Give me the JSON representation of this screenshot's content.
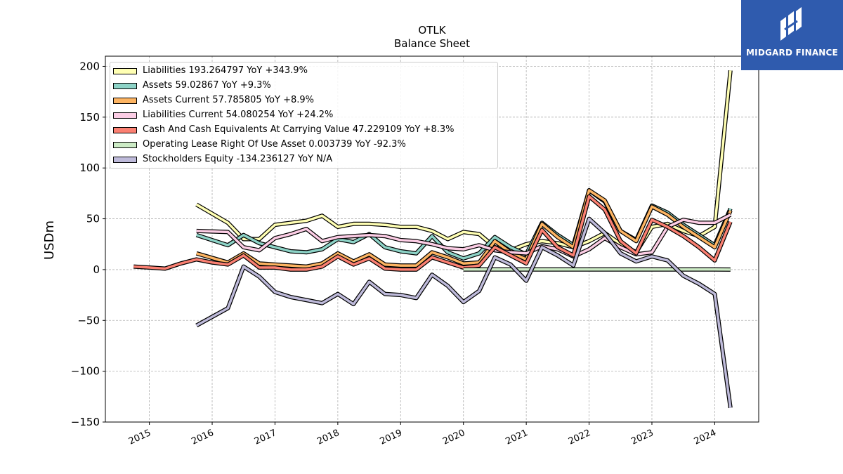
{
  "header": {
    "title": "OTLK",
    "subtitle": "Balance  Sheet"
  },
  "logo": {
    "text": "MIDGARD FINANCE",
    "icon": "midgard-logo-icon",
    "bg_color": "#2f5bae"
  },
  "chart_data": {
    "type": "line",
    "title": "OTLK",
    "subtitle": "Balance  Sheet",
    "ylabel": "USDm",
    "xlabel": "",
    "xlim": [
      2014.3,
      2024.7
    ],
    "ylim": [
      -150,
      210
    ],
    "x_ticks": [
      2015,
      2016,
      2017,
      2018,
      2019,
      2020,
      2021,
      2022,
      2023,
      2024
    ],
    "y_ticks": [
      -150,
      -100,
      -50,
      0,
      50,
      100,
      150,
      200
    ],
    "grid": true,
    "legend_position": "top-left",
    "series": [
      {
        "name": "Liabilities",
        "legend": "Liabilities  193.264797 YoY +343.9%",
        "color": "#ffffb3",
        "points": [
          [
            2015.75,
            64
          ],
          [
            2016.25,
            46
          ],
          [
            2016.5,
            30
          ],
          [
            2016.75,
            30
          ],
          [
            2017.0,
            44
          ],
          [
            2017.25,
            46
          ],
          [
            2017.5,
            48
          ],
          [
            2017.75,
            53
          ],
          [
            2018.0,
            42
          ],
          [
            2018.25,
            45
          ],
          [
            2018.5,
            45
          ],
          [
            2018.75,
            44
          ],
          [
            2019.0,
            42
          ],
          [
            2019.25,
            42
          ],
          [
            2019.5,
            38
          ],
          [
            2019.75,
            30
          ],
          [
            2020.0,
            37
          ],
          [
            2020.25,
            35
          ],
          [
            2020.5,
            22
          ],
          [
            2020.75,
            19
          ],
          [
            2021.0,
            25
          ],
          [
            2021.25,
            28
          ],
          [
            2021.5,
            26
          ],
          [
            2021.75,
            22
          ],
          [
            2022.0,
            28
          ],
          [
            2022.25,
            36
          ],
          [
            2022.5,
            25
          ],
          [
            2022.75,
            17
          ],
          [
            2023.0,
            42
          ],
          [
            2023.25,
            45
          ],
          [
            2023.5,
            38
          ],
          [
            2023.75,
            33
          ],
          [
            2024.0,
            42
          ],
          [
            2024.25,
            196
          ]
        ]
      },
      {
        "name": "Assets",
        "legend": "Assets  59.02867 YoY +9.3%",
        "color": "#8dd3c7",
        "points": [
          [
            2015.75,
            34
          ],
          [
            2016.25,
            24
          ],
          [
            2016.5,
            34
          ],
          [
            2016.75,
            26
          ],
          [
            2017.0,
            22
          ],
          [
            2017.25,
            18
          ],
          [
            2017.5,
            17
          ],
          [
            2017.75,
            20
          ],
          [
            2018.0,
            30
          ],
          [
            2018.25,
            27
          ],
          [
            2018.5,
            35
          ],
          [
            2018.75,
            22
          ],
          [
            2019.0,
            18
          ],
          [
            2019.25,
            16
          ],
          [
            2019.5,
            33
          ],
          [
            2019.75,
            17
          ],
          [
            2020.0,
            11
          ],
          [
            2020.25,
            16
          ],
          [
            2020.5,
            32
          ],
          [
            2020.75,
            22
          ],
          [
            2021.0,
            15
          ],
          [
            2021.25,
            46
          ],
          [
            2021.5,
            34
          ],
          [
            2021.75,
            24
          ],
          [
            2022.0,
            78
          ],
          [
            2022.25,
            67
          ],
          [
            2022.5,
            38
          ],
          [
            2022.75,
            29
          ],
          [
            2023.0,
            63
          ],
          [
            2023.25,
            56
          ],
          [
            2023.5,
            44
          ],
          [
            2023.75,
            34
          ],
          [
            2024.0,
            24
          ],
          [
            2024.25,
            60
          ]
        ]
      },
      {
        "name": "Assets Current",
        "legend": "Assets Current  57.785805 YoY +8.9%",
        "color": "#fdb462",
        "points": [
          [
            2015.75,
            16
          ],
          [
            2016.25,
            7
          ],
          [
            2016.5,
            16
          ],
          [
            2016.75,
            6
          ],
          [
            2017.0,
            5
          ],
          [
            2017.25,
            4
          ],
          [
            2017.5,
            3
          ],
          [
            2017.75,
            6
          ],
          [
            2018.0,
            16
          ],
          [
            2018.25,
            8
          ],
          [
            2018.5,
            15
          ],
          [
            2018.75,
            5
          ],
          [
            2019.0,
            4
          ],
          [
            2019.25,
            4
          ],
          [
            2019.5,
            17
          ],
          [
            2019.75,
            12
          ],
          [
            2020.0,
            6
          ],
          [
            2020.25,
            7
          ],
          [
            2020.5,
            28
          ],
          [
            2020.75,
            17
          ],
          [
            2021.0,
            10
          ],
          [
            2021.25,
            45
          ],
          [
            2021.5,
            32
          ],
          [
            2021.75,
            22
          ],
          [
            2022.0,
            78
          ],
          [
            2022.25,
            68
          ],
          [
            2022.5,
            38
          ],
          [
            2022.75,
            28
          ],
          [
            2023.0,
            62
          ],
          [
            2023.25,
            54
          ],
          [
            2023.5,
            42
          ],
          [
            2023.75,
            32
          ],
          [
            2024.0,
            22
          ],
          [
            2024.25,
            58
          ]
        ]
      },
      {
        "name": "Liabilities Current",
        "legend": "Liabilities Current  54.080254 YoY +24.2%",
        "color": "#fccde5",
        "points": [
          [
            2015.75,
            38
          ],
          [
            2016.25,
            37
          ],
          [
            2016.5,
            22
          ],
          [
            2016.75,
            19
          ],
          [
            2017.0,
            31
          ],
          [
            2017.25,
            35
          ],
          [
            2017.5,
            40
          ],
          [
            2017.75,
            28
          ],
          [
            2018.0,
            32
          ],
          [
            2018.25,
            33
          ],
          [
            2018.5,
            34
          ],
          [
            2018.75,
            33
          ],
          [
            2019.0,
            29
          ],
          [
            2019.25,
            28
          ],
          [
            2019.5,
            25
          ],
          [
            2019.75,
            21
          ],
          [
            2020.0,
            20
          ],
          [
            2020.25,
            24
          ],
          [
            2020.5,
            19
          ],
          [
            2020.75,
            17
          ],
          [
            2021.0,
            16
          ],
          [
            2021.25,
            23
          ],
          [
            2021.5,
            20
          ],
          [
            2021.75,
            13
          ],
          [
            2022.0,
            20
          ],
          [
            2022.25,
            31
          ],
          [
            2022.5,
            22
          ],
          [
            2022.75,
            15
          ],
          [
            2023.0,
            17
          ],
          [
            2023.25,
            42
          ],
          [
            2023.5,
            49
          ],
          [
            2023.75,
            46
          ],
          [
            2024.0,
            46
          ],
          [
            2024.25,
            54
          ]
        ]
      },
      {
        "name": "Cash And Cash Equivalents At Carrying Value",
        "legend": "Cash And Cash Equivalents At Carrying Value  47.229109 YoY +8.3%",
        "color": "#fb8072",
        "points": [
          [
            2014.75,
            3
          ],
          [
            2015.0,
            2
          ],
          [
            2015.25,
            1
          ],
          [
            2015.5,
            6
          ],
          [
            2015.75,
            10
          ],
          [
            2016.0,
            7
          ],
          [
            2016.25,
            5
          ],
          [
            2016.5,
            14
          ],
          [
            2016.75,
            2
          ],
          [
            2017.0,
            2
          ],
          [
            2017.25,
            0
          ],
          [
            2017.5,
            0
          ],
          [
            2017.75,
            3
          ],
          [
            2018.0,
            13
          ],
          [
            2018.25,
            5
          ],
          [
            2018.5,
            11
          ],
          [
            2018.75,
            1
          ],
          [
            2019.0,
            0
          ],
          [
            2019.25,
            0
          ],
          [
            2019.5,
            12
          ],
          [
            2019.75,
            7
          ],
          [
            2020.0,
            2
          ],
          [
            2020.25,
            4
          ],
          [
            2020.5,
            22
          ],
          [
            2020.75,
            14
          ],
          [
            2021.0,
            6
          ],
          [
            2021.25,
            39
          ],
          [
            2021.5,
            22
          ],
          [
            2021.75,
            14
          ],
          [
            2022.0,
            72
          ],
          [
            2022.25,
            59
          ],
          [
            2022.5,
            28
          ],
          [
            2022.75,
            16
          ],
          [
            2023.0,
            49
          ],
          [
            2023.25,
            42
          ],
          [
            2023.5,
            33
          ],
          [
            2023.75,
            22
          ],
          [
            2024.0,
            9
          ],
          [
            2024.25,
            47
          ]
        ]
      },
      {
        "name": "Operating Lease Right Of Use Asset",
        "legend": "Operating Lease Right Of Use Asset  0.003739 YoY -92.3%",
        "color": "#ccebc5",
        "points": [
          [
            2020.0,
            0.1
          ],
          [
            2020.25,
            0.1
          ],
          [
            2020.5,
            0.1
          ],
          [
            2020.75,
            0.1
          ],
          [
            2021.0,
            0.1
          ],
          [
            2021.25,
            0.1
          ],
          [
            2021.5,
            0.1
          ],
          [
            2021.75,
            0.1
          ],
          [
            2022.0,
            0.1
          ],
          [
            2022.25,
            0.1
          ],
          [
            2022.5,
            0.1
          ],
          [
            2022.75,
            0.1
          ],
          [
            2023.0,
            0.1
          ],
          [
            2023.25,
            0.1
          ],
          [
            2023.5,
            0.1
          ],
          [
            2023.75,
            0.1
          ],
          [
            2024.0,
            0.1
          ],
          [
            2024.25,
            0.0
          ]
        ]
      },
      {
        "name": "Stockholders Equity",
        "legend": "Stockholders Equity  -134.236127 YoY N/A",
        "color": "#bebada",
        "points": [
          [
            2015.75,
            -55
          ],
          [
            2016.25,
            -38
          ],
          [
            2016.5,
            3
          ],
          [
            2016.75,
            -7
          ],
          [
            2017.0,
            -22
          ],
          [
            2017.25,
            -27
          ],
          [
            2017.5,
            -30
          ],
          [
            2017.75,
            -33
          ],
          [
            2018.0,
            -24
          ],
          [
            2018.25,
            -34
          ],
          [
            2018.5,
            -12
          ],
          [
            2018.75,
            -24
          ],
          [
            2019.0,
            -25
          ],
          [
            2019.25,
            -28
          ],
          [
            2019.5,
            -5
          ],
          [
            2019.75,
            -16
          ],
          [
            2020.0,
            -32
          ],
          [
            2020.25,
            -21
          ],
          [
            2020.5,
            12
          ],
          [
            2020.75,
            5
          ],
          [
            2021.0,
            -11
          ],
          [
            2021.25,
            22
          ],
          [
            2021.5,
            14
          ],
          [
            2021.75,
            4
          ],
          [
            2022.0,
            50
          ],
          [
            2022.25,
            36
          ],
          [
            2022.5,
            16
          ],
          [
            2022.75,
            8
          ],
          [
            2023.0,
            13
          ],
          [
            2023.25,
            9
          ],
          [
            2023.5,
            -6
          ],
          [
            2023.75,
            -14
          ],
          [
            2024.0,
            -24
          ],
          [
            2024.25,
            -136
          ]
        ]
      }
    ]
  }
}
